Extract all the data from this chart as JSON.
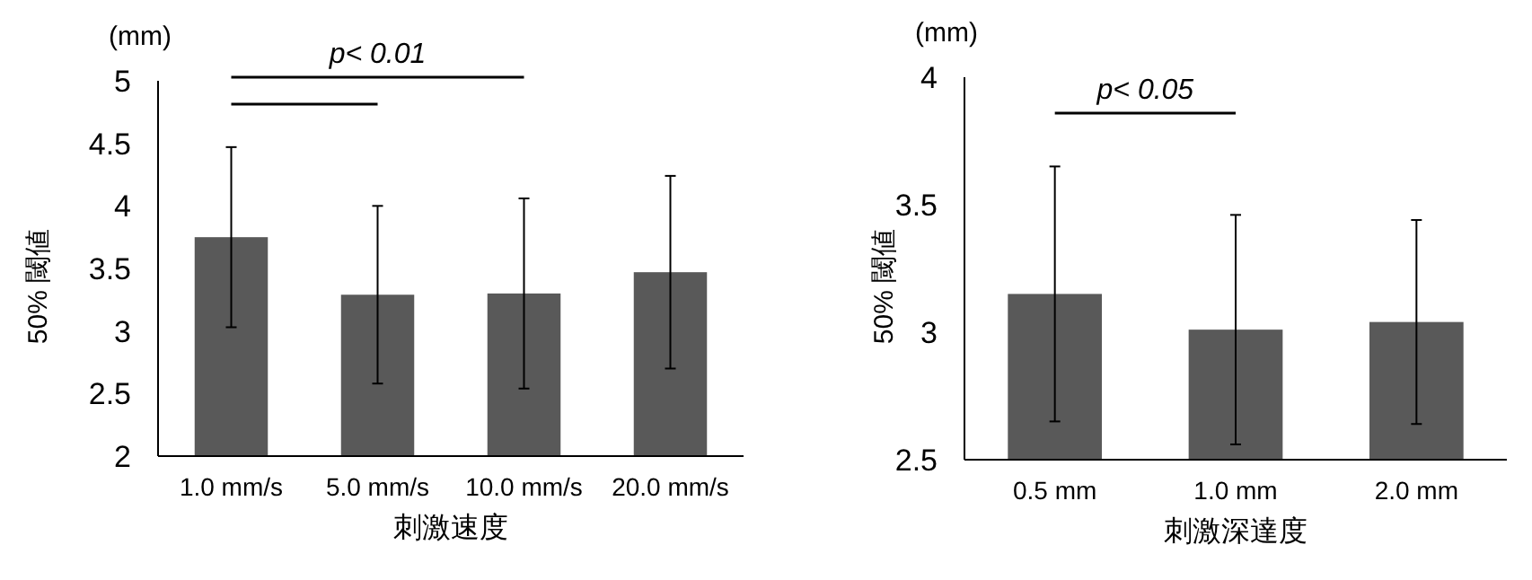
{
  "chart_data": [
    {
      "type": "bar",
      "ylabel": "50% 閾値",
      "xlabel": "刺激速度",
      "annotations": [
        "(mm)",
        "p< 0.01"
      ],
      "categories": [
        "1.0 mm/s",
        "5.0 mm/s",
        "10.0 mm/s",
        "20.0 mm/s"
      ],
      "values": [
        3.75,
        3.29,
        3.3,
        3.47
      ],
      "errors": [
        0.72,
        0.71,
        0.76,
        0.77
      ],
      "color": "#595959",
      "ylim": [
        2,
        5
      ],
      "yticks": [
        2,
        2.5,
        3,
        3.5,
        4,
        4.5,
        5
      ],
      "grid": false
    },
    {
      "type": "bar",
      "ylabel": "50% 閾値",
      "xlabel": "刺激深達度",
      "annotations": [
        "(mm)",
        "p< 0.05"
      ],
      "categories": [
        "0.5 mm",
        "1.0 mm",
        "2.0 mm"
      ],
      "values": [
        3.15,
        3.01,
        3.04
      ],
      "errors": [
        0.5,
        0.45,
        0.4
      ],
      "color": "#595959",
      "ylim": [
        2.5,
        4
      ],
      "yticks": [
        2.5,
        3,
        3.5,
        4
      ],
      "grid": false
    }
  ]
}
